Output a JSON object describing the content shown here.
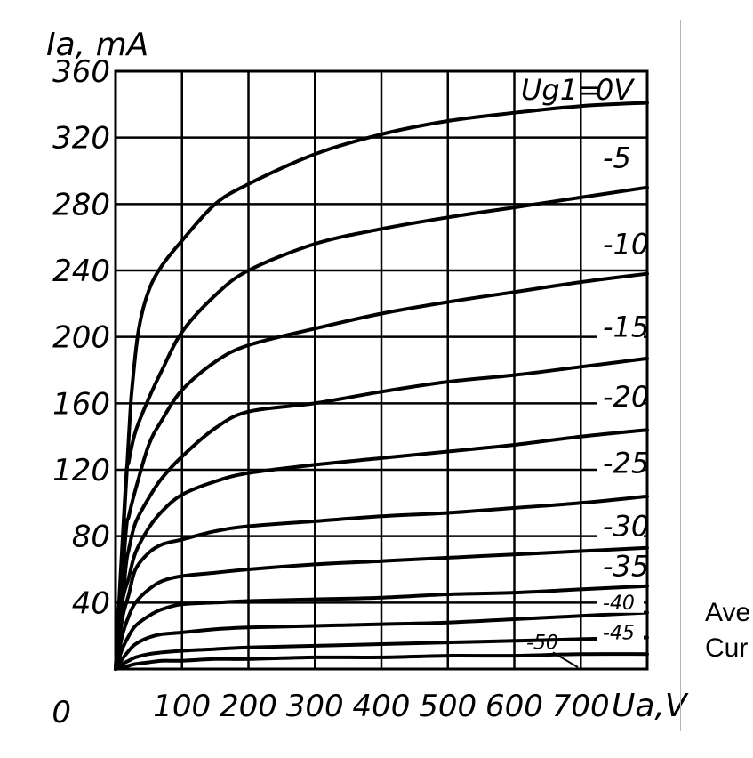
{
  "chart_data": {
    "type": "line",
    "xlabel": "Ua,V",
    "ylabel": "Ia, mA",
    "legend_title": "Ug1=",
    "xlim": [
      0,
      800
    ],
    "ylim": [
      0,
      360
    ],
    "grid": true,
    "x_ticks": [
      "0",
      "100",
      "200",
      "300",
      "400",
      "500",
      "600",
      "700"
    ],
    "y_ticks": [
      "0",
      "40",
      "80",
      "120",
      "160",
      "200",
      "240",
      "280",
      "320",
      "360"
    ],
    "series": [
      {
        "name": "0V",
        "x": [
          0,
          20,
          25,
          35,
          50,
          70,
          100,
          150,
          200,
          300,
          400,
          500,
          600,
          700,
          800
        ],
        "y": [
          0,
          140,
          170,
          205,
          228,
          243,
          258,
          280,
          292,
          310,
          322,
          330,
          335,
          339,
          341
        ]
      },
      {
        "name": "-5",
        "x": [
          0,
          15,
          20,
          30,
          50,
          70,
          100,
          150,
          200,
          300,
          400,
          500,
          600,
          700,
          800
        ],
        "y": [
          0,
          110,
          125,
          143,
          163,
          180,
          203,
          225,
          240,
          256,
          265,
          272,
          278,
          284,
          290
        ]
      },
      {
        "name": "-10",
        "x": [
          0,
          15,
          20,
          30,
          50,
          70,
          100,
          150,
          200,
          300,
          400,
          500,
          600,
          700,
          800
        ],
        "y": [
          0,
          80,
          92,
          108,
          135,
          150,
          168,
          185,
          195,
          205,
          214,
          221,
          227,
          233,
          238
        ]
      },
      {
        "name": "-15",
        "x": [
          0,
          15,
          20,
          30,
          50,
          70,
          100,
          150,
          200,
          300,
          400,
          500,
          600,
          700,
          800
        ],
        "y": [
          0,
          60,
          72,
          88,
          103,
          115,
          128,
          145,
          155,
          160,
          167,
          173,
          177,
          182,
          187
        ]
      },
      {
        "name": "-20",
        "x": [
          0,
          10,
          20,
          30,
          50,
          70,
          100,
          150,
          200,
          300,
          400,
          500,
          600,
          700,
          800
        ],
        "y": [
          0,
          40,
          55,
          70,
          85,
          95,
          105,
          113,
          118,
          123,
          127,
          131,
          135,
          140,
          144
        ]
      },
      {
        "name": "-25",
        "x": [
          0,
          10,
          20,
          30,
          50,
          70,
          100,
          150,
          200,
          300,
          400,
          500,
          600,
          700,
          800
        ],
        "y": [
          0,
          30,
          45,
          60,
          70,
          75,
          78,
          83,
          86,
          89,
          92,
          94,
          97,
          100,
          104
        ]
      },
      {
        "name": "-30",
        "x": [
          0,
          10,
          20,
          30,
          50,
          70,
          100,
          150,
          200,
          300,
          400,
          500,
          600,
          700,
          800
        ],
        "y": [
          0,
          20,
          32,
          40,
          48,
          53,
          56,
          58,
          60,
          63,
          65,
          67,
          69,
          71,
          73
        ]
      },
      {
        "name": "-35",
        "x": [
          0,
          10,
          20,
          30,
          50,
          70,
          100,
          150,
          200,
          300,
          400,
          500,
          600,
          700,
          800
        ],
        "y": [
          0,
          12,
          20,
          26,
          32,
          36,
          39,
          40,
          41,
          42,
          43,
          45,
          46,
          48,
          50
        ]
      },
      {
        "name": "-40",
        "x": [
          0,
          10,
          20,
          30,
          50,
          70,
          100,
          150,
          200,
          300,
          400,
          500,
          600,
          700,
          800
        ],
        "y": [
          0,
          6,
          11,
          15,
          19,
          21,
          22,
          24,
          25,
          26,
          27,
          28,
          30,
          32,
          34
        ]
      },
      {
        "name": "-45",
        "x": [
          0,
          10,
          20,
          30,
          50,
          70,
          100,
          150,
          200,
          300,
          400,
          500,
          600,
          700,
          800
        ],
        "y": [
          0,
          3,
          5,
          7,
          9,
          10,
          11,
          12,
          13,
          14,
          15,
          16,
          17,
          18,
          19
        ]
      },
      {
        "name": "-50",
        "x": [
          0,
          10,
          20,
          30,
          50,
          70,
          100,
          150,
          200,
          300,
          400,
          500,
          600,
          700,
          800
        ],
        "y": [
          0,
          1,
          2,
          3,
          4,
          5,
          5,
          6,
          6,
          7,
          7,
          8,
          8,
          9,
          9
        ]
      }
    ]
  },
  "side_text": {
    "line1": "Ave",
    "line2": "Cur"
  }
}
